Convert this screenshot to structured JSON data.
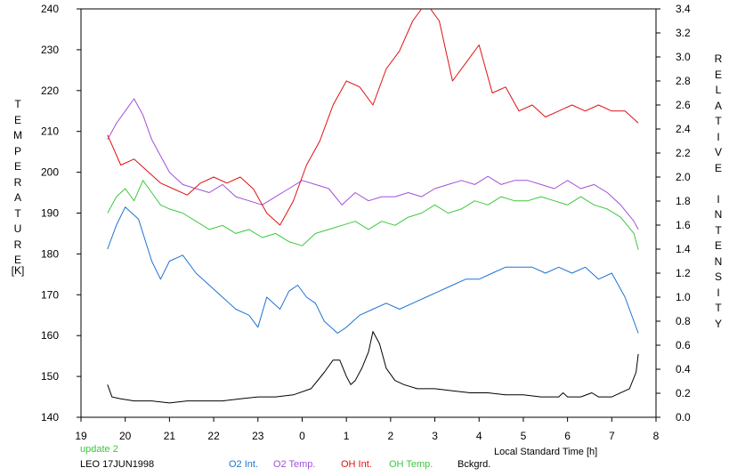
{
  "info": {
    "update_label": "update 2",
    "site_date": "LEO 17JUN1998"
  },
  "chart_data": {
    "type": "line",
    "xlabel": "Local Standard Time [h]",
    "ylabel_left": "TEMPERATURE",
    "ylabel_left_unit": "[K]",
    "ylabel_right": "RELATIVE INTENSITY",
    "x_ticks": [
      "19",
      "20",
      "21",
      "22",
      "23",
      "0",
      "1",
      "2",
      "3",
      "4",
      "5",
      "6",
      "7",
      "8"
    ],
    "xlim_hours_since_19": [
      0,
      13
    ],
    "ylim_left": [
      140,
      240
    ],
    "y_ticks_left": [
      "140",
      "150",
      "160",
      "170",
      "180",
      "190",
      "200",
      "210",
      "220",
      "230",
      "240"
    ],
    "ylim_right": [
      0.0,
      3.4
    ],
    "y_ticks_right": [
      "0.0",
      "0.2",
      "0.4",
      "0.6",
      "0.8",
      "1.0",
      "1.2",
      "1.4",
      "1.6",
      "1.8",
      "2.0",
      "2.2",
      "2.4",
      "2.6",
      "2.8",
      "3.0",
      "3.2",
      "3.4"
    ],
    "grid": false,
    "series": [
      {
        "name": "O2 Int.",
        "axis": "right",
        "color": "#1e73d2",
        "x": [
          0.6,
          0.8,
          1.0,
          1.3,
          1.6,
          1.8,
          2.0,
          2.3,
          2.6,
          2.9,
          3.2,
          3.5,
          3.8,
          4.0,
          4.2,
          4.5,
          4.7,
          4.9,
          5.1,
          5.3,
          5.5,
          5.8,
          6.0,
          6.3,
          6.6,
          6.9,
          7.2,
          7.5,
          7.8,
          8.1,
          8.4,
          8.7,
          9.0,
          9.3,
          9.6,
          9.9,
          10.2,
          10.5,
          10.8,
          11.1,
          11.4,
          11.7,
          12.0,
          12.3,
          12.6
        ],
        "y": [
          1.4,
          1.6,
          1.75,
          1.65,
          1.3,
          1.15,
          1.3,
          1.35,
          1.2,
          1.1,
          1.0,
          0.9,
          0.85,
          0.75,
          1.0,
          0.9,
          1.05,
          1.1,
          1.0,
          0.95,
          0.8,
          0.7,
          0.75,
          0.85,
          0.9,
          0.95,
          0.9,
          0.95,
          1.0,
          1.05,
          1.1,
          1.15,
          1.15,
          1.2,
          1.25,
          1.25,
          1.25,
          1.2,
          1.25,
          1.2,
          1.25,
          1.15,
          1.2,
          1.0,
          0.7
        ]
      },
      {
        "name": "O2 Temp.",
        "axis": "left",
        "color": "#a050d8",
        "x": [
          0.6,
          0.8,
          1.0,
          1.2,
          1.4,
          1.6,
          1.8,
          2.0,
          2.3,
          2.6,
          2.9,
          3.2,
          3.5,
          3.8,
          4.1,
          4.4,
          4.7,
          5.0,
          5.3,
          5.6,
          5.9,
          6.2,
          6.5,
          6.8,
          7.1,
          7.4,
          7.7,
          8.0,
          8.3,
          8.6,
          8.9,
          9.2,
          9.5,
          9.8,
          10.1,
          10.4,
          10.7,
          11.0,
          11.3,
          11.6,
          11.9,
          12.2,
          12.5,
          12.6
        ],
        "y": [
          208,
          212,
          215,
          218,
          214,
          208,
          204,
          200,
          197,
          196,
          195,
          197,
          194,
          193,
          192,
          194,
          196,
          198,
          197,
          196,
          192,
          195,
          193,
          194,
          194,
          195,
          194,
          196,
          197,
          198,
          197,
          199,
          197,
          198,
          198,
          197,
          196,
          198,
          196,
          197,
          195,
          192,
          188,
          186
        ]
      },
      {
        "name": "OH Int.",
        "axis": "right",
        "color": "#e01010",
        "x": [
          0.6,
          0.9,
          1.2,
          1.5,
          1.8,
          2.1,
          2.4,
          2.7,
          3.0,
          3.3,
          3.6,
          3.9,
          4.2,
          4.5,
          4.8,
          5.1,
          5.4,
          5.7,
          6.0,
          6.3,
          6.6,
          6.9,
          7.2,
          7.5,
          7.8,
          8.1,
          8.4,
          8.7,
          9.0,
          9.3,
          9.6,
          9.9,
          10.2,
          10.5,
          10.8,
          11.1,
          11.4,
          11.7,
          12.0,
          12.3,
          12.6
        ],
        "y": [
          2.35,
          2.1,
          2.15,
          2.05,
          1.95,
          1.9,
          1.85,
          1.95,
          2.0,
          1.95,
          2.0,
          1.9,
          1.7,
          1.6,
          1.8,
          2.1,
          2.3,
          2.6,
          2.8,
          2.75,
          2.6,
          2.9,
          3.05,
          3.3,
          3.45,
          3.3,
          2.8,
          2.95,
          3.1,
          2.7,
          2.75,
          2.55,
          2.6,
          2.5,
          2.55,
          2.6,
          2.55,
          2.6,
          2.55,
          2.55,
          2.45
        ]
      },
      {
        "name": "OH Temp.",
        "axis": "left",
        "color": "#3cc83c",
        "x": [
          0.6,
          0.8,
          1.0,
          1.2,
          1.4,
          1.6,
          1.8,
          2.0,
          2.3,
          2.6,
          2.9,
          3.2,
          3.5,
          3.8,
          4.1,
          4.4,
          4.7,
          5.0,
          5.3,
          5.6,
          5.9,
          6.2,
          6.5,
          6.8,
          7.1,
          7.4,
          7.7,
          8.0,
          8.3,
          8.6,
          8.9,
          9.2,
          9.5,
          9.8,
          10.1,
          10.4,
          10.7,
          11.0,
          11.3,
          11.6,
          11.9,
          12.2,
          12.5,
          12.6
        ],
        "y": [
          190,
          194,
          196,
          193,
          198,
          195,
          192,
          191,
          190,
          188,
          186,
          187,
          185,
          186,
          184,
          185,
          183,
          182,
          185,
          186,
          187,
          188,
          186,
          188,
          187,
          189,
          190,
          192,
          190,
          191,
          193,
          192,
          194,
          193,
          193,
          194,
          193,
          192,
          194,
          192,
          191,
          189,
          185,
          181
        ]
      },
      {
        "name": "Bckgrd.",
        "axis": "left",
        "color": "#000000",
        "x": [
          0.6,
          0.7,
          0.9,
          1.2,
          1.6,
          2.0,
          2.4,
          2.8,
          3.2,
          3.6,
          4.0,
          4.4,
          4.8,
          5.2,
          5.5,
          5.7,
          5.85,
          6.0,
          6.1,
          6.2,
          6.35,
          6.5,
          6.6,
          6.75,
          6.9,
          7.1,
          7.3,
          7.6,
          8.0,
          8.4,
          8.8,
          9.2,
          9.6,
          10.0,
          10.4,
          10.8,
          10.9,
          11.0,
          11.3,
          11.55,
          11.7,
          12.0,
          12.4,
          12.55,
          12.6
        ],
        "y": [
          148,
          145,
          144.5,
          144,
          144,
          143.5,
          144,
          144,
          144,
          144.5,
          145,
          145,
          145.5,
          147,
          151,
          154,
          154,
          150,
          148,
          149,
          152,
          156,
          161,
          158,
          152,
          149,
          148,
          147,
          147,
          146.5,
          146,
          146,
          145.5,
          145.5,
          145,
          145,
          146,
          145,
          145,
          146,
          145,
          145,
          147,
          151,
          155.5
        ]
      }
    ]
  }
}
